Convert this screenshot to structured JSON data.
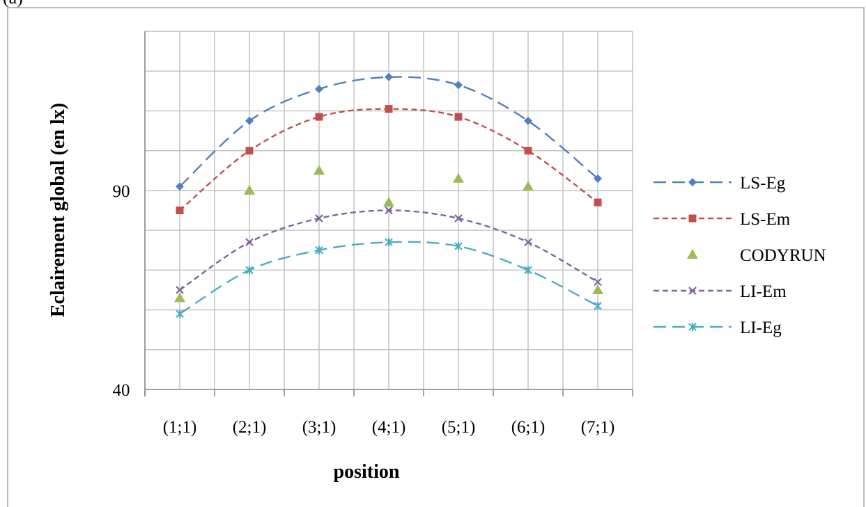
{
  "chart_data": {
    "type": "line",
    "xlabel": "position",
    "ylabel": "Eclairement global (en lx)",
    "categories": [
      "(1;1)",
      "(2;1)",
      "(3;1)",
      "(4;1)",
      "(5;1)",
      "(6;1)",
      "(7;1)"
    ],
    "ylim": [
      40,
      130
    ],
    "yticks": [
      40,
      90
    ],
    "grid": true,
    "legend_position": "right",
    "series": [
      {
        "name": "LS-Eg",
        "color": "#4f81bd",
        "marker": "diamond",
        "dash": "long-dash",
        "values": [
          91.0,
          107.5,
          115.5,
          118.5,
          116.5,
          107.5,
          93.0
        ]
      },
      {
        "name": "LS-Em",
        "color": "#c0504d",
        "marker": "square",
        "dash": "short-dash",
        "values": [
          85.0,
          100.0,
          108.5,
          110.5,
          108.5,
          100.0,
          87.0
        ]
      },
      {
        "name": "CODYRUN",
        "color": "#9bbb59",
        "marker": "triangle",
        "dash": "none",
        "values": [
          63.0,
          90.0,
          95.0,
          87.0,
          93.0,
          91.0,
          65.0
        ]
      },
      {
        "name": "LI-Em",
        "color": "#8064a2",
        "marker": "x",
        "dash": "short-dash",
        "values": [
          65.0,
          77.0,
          83.0,
          85.0,
          83.0,
          77.0,
          67.0
        ]
      },
      {
        "name": "LI-Eg",
        "color": "#4bacc6",
        "marker": "star",
        "dash": "long-dash",
        "values": [
          59.0,
          70.0,
          75.0,
          77.0,
          76.0,
          70.0,
          61.0
        ]
      }
    ]
  },
  "header_fragment": "(a)"
}
